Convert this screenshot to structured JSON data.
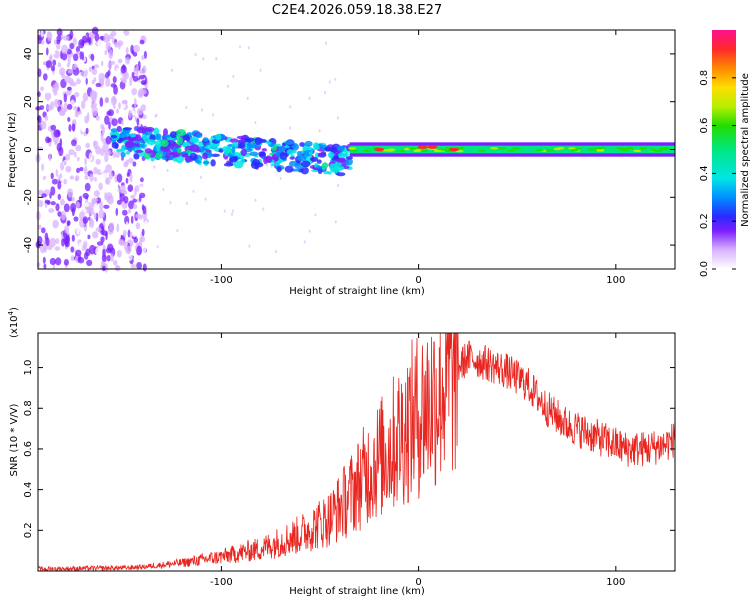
{
  "title": "C2E4.2026.059.18.38.E27",
  "chart_data": [
    {
      "type": "heatmap",
      "name": "spectrogram",
      "xlabel": "Height of straight line (km)",
      "ylabel": "Frequency (Hz)",
      "xlim": [
        -193,
        130
      ],
      "ylim": [
        -50,
        50
      ],
      "xticks": [
        -100,
        0,
        100
      ],
      "xtick_labels": [
        "-100",
        "0",
        "100"
      ],
      "yticks": [
        -40,
        -20,
        0,
        20,
        40
      ],
      "ytick_labels": [
        "-40",
        "-20",
        "0",
        "20",
        "40"
      ],
      "colorbar": {
        "label": "Normalized spectral amplitude",
        "range": [
          0,
          1
        ],
        "ticks": [
          0.0,
          0.2,
          0.4,
          0.6,
          0.8
        ],
        "tick_labels": [
          "0.0",
          "0.2",
          "0.4",
          "0.6",
          "0.8"
        ]
      },
      "features": [
        {
          "description": "scattered noise",
          "x_range": [
            -193,
            -138
          ],
          "freq_range": [
            -50,
            50
          ],
          "amplitude": 0.18
        },
        {
          "description": "broad signal track",
          "x_range": [
            -155,
            -35
          ],
          "freq_center_start": 4,
          "freq_center_end": -5,
          "amplitude": 0.4
        },
        {
          "description": "steady carrier line",
          "x_range": [
            -35,
            130
          ],
          "freq_center": 0,
          "amplitude": 0.5
        },
        {
          "description": "peak blobs",
          "x": [
            -20,
            2,
            7,
            18
          ],
          "freq": [
            0,
            1,
            1,
            0
          ],
          "amplitude": 0.95
        }
      ]
    },
    {
      "type": "line",
      "name": "snr",
      "xlabel": "Height of straight line (km)",
      "ylabel": "SNR (10 * V/V)",
      "y_multiplier_label": "(x10",
      "y_multiplier_exponent": "4",
      "xlim": [
        -193,
        130
      ],
      "ylim": [
        0,
        1.17
      ],
      "xticks": [
        -100,
        0,
        100
      ],
      "xtick_labels": [
        "-100",
        "0",
        "100"
      ],
      "yticks": [
        0.2,
        0.4,
        0.6,
        0.8,
        1.0
      ],
      "ytick_labels": [
        "0.2",
        "0.4",
        "0.6",
        "0.8",
        "1.0"
      ],
      "color": "#e8251f",
      "envelope": {
        "x": [
          -193,
          -150,
          -140,
          -120,
          -100,
          -80,
          -60,
          -45,
          -35,
          -25,
          -15,
          -5,
          5,
          15,
          25,
          35,
          45,
          55,
          65,
          75,
          85,
          95,
          105,
          115,
          125,
          130
        ],
        "y": [
          0.01,
          0.015,
          0.02,
          0.04,
          0.07,
          0.11,
          0.18,
          0.26,
          0.37,
          0.5,
          0.6,
          0.72,
          0.82,
          0.95,
          1.05,
          1.02,
          0.98,
          0.92,
          0.8,
          0.72,
          0.68,
          0.64,
          0.6,
          0.6,
          0.62,
          0.65
        ]
      }
    }
  ]
}
